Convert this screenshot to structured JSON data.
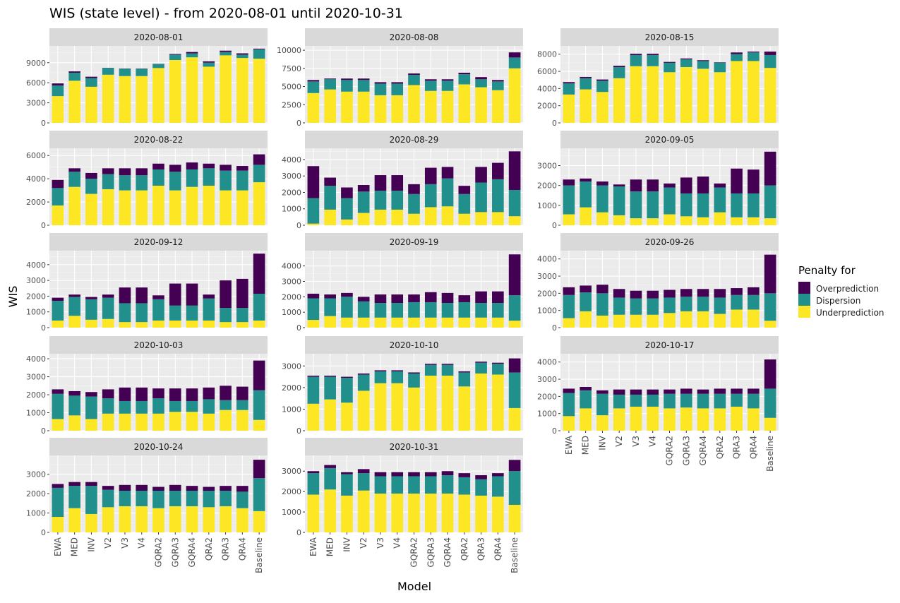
{
  "title": "WIS (state level) - from 2020-08-01 until 2020-10-31",
  "xlabel": "Model",
  "ylabel": "WIS",
  "legend": {
    "title": "Penalty for",
    "items": [
      {
        "key": "overprediction",
        "label": "Overprediction",
        "color": "#440154"
      },
      {
        "key": "dispersion",
        "label": "Dispersion",
        "color": "#21908C"
      },
      {
        "key": "underprediction",
        "label": "Underprediction",
        "color": "#FDE725"
      }
    ]
  },
  "chart_data": {
    "type": "bar",
    "stacked": true,
    "facet_by": "forecast date",
    "grid": true,
    "legend_position": "right",
    "categories": [
      "EWA",
      "MED",
      "INV",
      "V2",
      "V3",
      "V4",
      "GQRA2",
      "GQRA3",
      "GQRA4",
      "QRA2",
      "QRA3",
      "QRA4",
      "Baseline"
    ],
    "stack_order_bottom_to_top": [
      "underprediction",
      "dispersion",
      "overprediction"
    ],
    "panels": [
      {
        "label": "2020-08-01",
        "ticks": [
          0,
          3000,
          6000,
          9000
        ],
        "ylim": [
          0,
          11300
        ],
        "underprediction": [
          4000,
          6300,
          5400,
          7200,
          7000,
          7000,
          8200,
          9400,
          9800,
          8400,
          10100,
          9700,
          9600
        ],
        "dispersion": [
          1600,
          1200,
          1300,
          1000,
          1100,
          1100,
          600,
          800,
          600,
          600,
          500,
          500,
          1400
        ],
        "overprediction": [
          300,
          200,
          200,
          30,
          30,
          30,
          30,
          100,
          200,
          200,
          200,
          200,
          100
        ]
      },
      {
        "label": "2020-08-08",
        "ticks": [
          0,
          2500,
          5000,
          7500,
          10000
        ],
        "ylim": [
          0,
          10400
        ],
        "underprediction": [
          4100,
          4600,
          4300,
          4300,
          3800,
          3800,
          5200,
          4400,
          4400,
          5300,
          4900,
          4500,
          7500
        ],
        "dispersion": [
          1600,
          1400,
          1600,
          1600,
          1600,
          1600,
          1400,
          1400,
          1400,
          1400,
          1100,
          1200,
          1500
        ],
        "overprediction": [
          200,
          100,
          200,
          200,
          200,
          200,
          200,
          200,
          200,
          200,
          300,
          200,
          700
        ]
      },
      {
        "label": "2020-08-15",
        "ticks": [
          0,
          2000,
          4000,
          6000,
          8000
        ],
        "ylim": [
          0,
          8800
        ],
        "underprediction": [
          3300,
          3900,
          3600,
          5200,
          6600,
          6600,
          5900,
          6500,
          6300,
          5900,
          7200,
          7200,
          6400
        ],
        "dispersion": [
          1300,
          1300,
          1300,
          1300,
          1300,
          1300,
          1100,
          900,
          900,
          1100,
          800,
          1000,
          1500
        ],
        "overprediction": [
          150,
          150,
          150,
          150,
          150,
          150,
          100,
          100,
          100,
          50,
          200,
          100,
          400
        ]
      },
      {
        "label": "2020-08-22",
        "ticks": [
          0,
          2000,
          4000,
          6000
        ],
        "ylim": [
          0,
          6500
        ],
        "underprediction": [
          1700,
          3300,
          2700,
          3100,
          3000,
          3000,
          3400,
          3000,
          3300,
          3400,
          3000,
          3000,
          3700
        ],
        "dispersion": [
          1500,
          1300,
          1300,
          1300,
          1300,
          1300,
          1400,
          1600,
          1500,
          1500,
          1700,
          1700,
          1500
        ],
        "overprediction": [
          700,
          300,
          500,
          500,
          600,
          600,
          500,
          600,
          600,
          400,
          500,
          400,
          900
        ]
      },
      {
        "label": "2020-08-29",
        "ticks": [
          0,
          1000,
          2000,
          3000,
          4000
        ],
        "ylim": [
          0,
          4600
        ],
        "underprediction": [
          100,
          950,
          350,
          750,
          950,
          950,
          700,
          1100,
          1150,
          700,
          800,
          800,
          550
        ],
        "dispersion": [
          1550,
          1450,
          1300,
          1300,
          1150,
          1150,
          1200,
          1400,
          1700,
          1200,
          1800,
          2000,
          1600
        ],
        "overprediction": [
          1950,
          500,
          650,
          400,
          950,
          950,
          600,
          1000,
          700,
          500,
          950,
          1000,
          2350
        ]
      },
      {
        "label": "2020-09-05",
        "ticks": [
          0,
          1000,
          2000,
          3000
        ],
        "ylim": [
          0,
          3800
        ],
        "underprediction": [
          550,
          900,
          650,
          500,
          350,
          350,
          550,
          450,
          400,
          650,
          400,
          400,
          350
        ],
        "dispersion": [
          1450,
          1300,
          1350,
          1450,
          1350,
          1350,
          1350,
          1150,
          1200,
          1250,
          1200,
          1200,
          1650
        ],
        "overprediction": [
          300,
          150,
          200,
          100,
          600,
          600,
          200,
          800,
          850,
          200,
          1250,
          1200,
          1700
        ]
      },
      {
        "label": "2020-09-12",
        "ticks": [
          0,
          1000,
          2000,
          3000,
          4000
        ],
        "ylim": [
          0,
          4800
        ],
        "underprediction": [
          450,
          750,
          500,
          550,
          350,
          350,
          450,
          450,
          450,
          450,
          350,
          350,
          450
        ],
        "dispersion": [
          1250,
          1200,
          1300,
          1350,
          1200,
          1200,
          1350,
          950,
          950,
          1400,
          900,
          900,
          1700
        ],
        "overprediction": [
          200,
          150,
          150,
          200,
          1000,
          1000,
          250,
          1400,
          1400,
          250,
          1750,
          1850,
          2550
        ]
      },
      {
        "label": "2020-09-19",
        "ticks": [
          0,
          1000,
          2000,
          3000,
          4000
        ],
        "ylim": [
          0,
          4900
        ],
        "underprediction": [
          500,
          750,
          650,
          650,
          650,
          650,
          650,
          650,
          650,
          650,
          650,
          650,
          450
        ],
        "dispersion": [
          1400,
          1150,
          1350,
          1050,
          950,
          950,
          1000,
          1000,
          950,
          1000,
          950,
          950,
          1650
        ],
        "overprediction": [
          300,
          250,
          250,
          300,
          550,
          550,
          500,
          650,
          650,
          450,
          750,
          750,
          2650
        ]
      },
      {
        "label": "2020-09-26",
        "ticks": [
          0,
          1000,
          2000,
          3000,
          4000
        ],
        "ylim": [
          0,
          4400
        ],
        "underprediction": [
          550,
          950,
          700,
          750,
          750,
          750,
          850,
          950,
          950,
          800,
          1050,
          1050,
          400
        ],
        "dispersion": [
          1350,
          1100,
          1300,
          1000,
          950,
          950,
          900,
          850,
          850,
          950,
          850,
          850,
          1600
        ],
        "overprediction": [
          450,
          400,
          500,
          500,
          450,
          450,
          450,
          450,
          450,
          500,
          400,
          450,
          2250
        ]
      },
      {
        "label": "2020-10-03",
        "ticks": [
          0,
          1000,
          2000,
          3000,
          4000
        ],
        "ylim": [
          0,
          4200
        ],
        "underprediction": [
          650,
          850,
          650,
          950,
          950,
          950,
          950,
          1050,
          1050,
          950,
          1150,
          1150,
          600
        ],
        "dispersion": [
          1400,
          1100,
          1250,
          850,
          700,
          700,
          850,
          600,
          600,
          800,
          550,
          550,
          1650
        ],
        "overprediction": [
          250,
          250,
          250,
          500,
          750,
          750,
          550,
          700,
          700,
          650,
          800,
          750,
          1650
        ]
      },
      {
        "label": "2020-10-10",
        "ticks": [
          0,
          1000,
          2000,
          3000
        ],
        "ylim": [
          0,
          3500
        ],
        "underprediction": [
          1250,
          1450,
          1300,
          1850,
          2200,
          2200,
          2000,
          2550,
          2550,
          2050,
          2650,
          2600,
          1050
        ],
        "dispersion": [
          1250,
          1050,
          1150,
          750,
          550,
          550,
          650,
          500,
          500,
          650,
          500,
          500,
          1650
        ],
        "overprediction": [
          50,
          50,
          50,
          50,
          50,
          50,
          50,
          50,
          50,
          50,
          50,
          50,
          650
        ]
      },
      {
        "label": "2020-10-17",
        "ticks": [
          0,
          1000,
          2000,
          3000,
          4000
        ],
        "ylim": [
          0,
          4400
        ],
        "underprediction": [
          850,
          1300,
          900,
          1300,
          1400,
          1400,
          1300,
          1350,
          1300,
          1300,
          1400,
          1300,
          750
        ],
        "dispersion": [
          1350,
          1050,
          1250,
          800,
          700,
          700,
          850,
          800,
          850,
          850,
          750,
          850,
          1700
        ],
        "overprediction": [
          250,
          200,
          200,
          300,
          300,
          300,
          250,
          300,
          250,
          300,
          300,
          300,
          1700
        ]
      },
      {
        "label": "2020-10-24",
        "ticks": [
          0,
          1000,
          2000,
          3000
        ],
        "ylim": [
          0,
          3900
        ],
        "underprediction": [
          800,
          1250,
          950,
          1300,
          1350,
          1350,
          1250,
          1350,
          1350,
          1300,
          1350,
          1250,
          1100
        ],
        "dispersion": [
          1500,
          1150,
          1450,
          900,
          800,
          800,
          900,
          800,
          800,
          850,
          800,
          850,
          1700
        ],
        "overprediction": [
          200,
          200,
          200,
          200,
          300,
          300,
          200,
          300,
          250,
          200,
          250,
          300,
          950
        ]
      },
      {
        "label": "2020-10-31",
        "ticks": [
          0,
          1000,
          2000,
          3000
        ],
        "ylim": [
          0,
          3700
        ],
        "underprediction": [
          1850,
          2100,
          1800,
          2050,
          1900,
          1900,
          1900,
          1900,
          1900,
          1850,
          1800,
          1750,
          1350
        ],
        "dispersion": [
          1050,
          1050,
          1050,
          850,
          850,
          850,
          850,
          850,
          900,
          850,
          800,
          1000,
          1650
        ],
        "overprediction": [
          100,
          150,
          100,
          200,
          200,
          200,
          200,
          200,
          200,
          200,
          200,
          150,
          550
        ]
      }
    ]
  }
}
